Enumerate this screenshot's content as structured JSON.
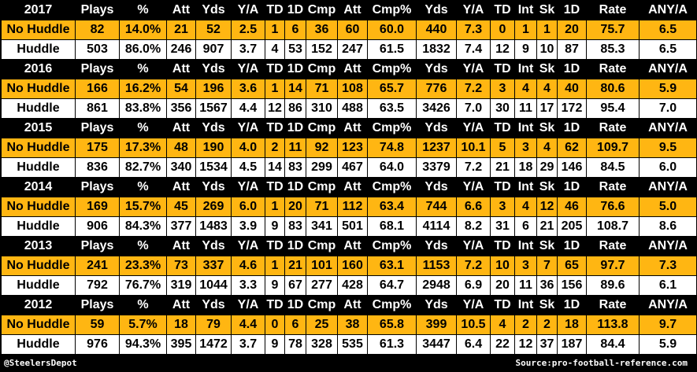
{
  "header_labels": [
    "Plays",
    "%",
    "Att",
    "Yds",
    "Y/A",
    "TD",
    "1D",
    "Cmp",
    "Att",
    "Cmp%",
    "Yds",
    "Y/A",
    "TD",
    "Int",
    "Sk",
    "1D",
    "Rate",
    "ANY/A"
  ],
  "seasons": [
    {
      "year": "2017",
      "rows": [
        {
          "label": "No Huddle",
          "values": [
            "82",
            "14.0%",
            "21",
            "52",
            "2.5",
            "1",
            "6",
            "36",
            "60",
            "60.0",
            "440",
            "7.3",
            "0",
            "1",
            "1",
            "20",
            "75.7",
            "6.5"
          ]
        },
        {
          "label": "Huddle",
          "values": [
            "503",
            "86.0%",
            "246",
            "907",
            "3.7",
            "4",
            "53",
            "152",
            "247",
            "61.5",
            "1832",
            "7.4",
            "12",
            "9",
            "10",
            "87",
            "85.3",
            "6.5"
          ]
        }
      ]
    },
    {
      "year": "2016",
      "rows": [
        {
          "label": "No Huddle",
          "values": [
            "166",
            "16.2%",
            "54",
            "196",
            "3.6",
            "1",
            "14",
            "71",
            "108",
            "65.7",
            "776",
            "7.2",
            "3",
            "4",
            "4",
            "40",
            "80.6",
            "5.9"
          ]
        },
        {
          "label": "Huddle",
          "values": [
            "861",
            "83.8%",
            "356",
            "1567",
            "4.4",
            "12",
            "86",
            "310",
            "488",
            "63.5",
            "3426",
            "7.0",
            "30",
            "11",
            "17",
            "172",
            "95.4",
            "7.0"
          ]
        }
      ]
    },
    {
      "year": "2015",
      "rows": [
        {
          "label": "No Huddle",
          "values": [
            "175",
            "17.3%",
            "48",
            "190",
            "4.0",
            "2",
            "11",
            "92",
            "123",
            "74.8",
            "1237",
            "10.1",
            "5",
            "3",
            "4",
            "62",
            "109.7",
            "9.5"
          ]
        },
        {
          "label": "Huddle",
          "values": [
            "836",
            "82.7%",
            "340",
            "1534",
            "4.5",
            "14",
            "83",
            "299",
            "467",
            "64.0",
            "3379",
            "7.2",
            "21",
            "18",
            "29",
            "146",
            "84.5",
            "6.0"
          ]
        }
      ]
    },
    {
      "year": "2014",
      "rows": [
        {
          "label": "No Huddle",
          "values": [
            "169",
            "15.7%",
            "45",
            "269",
            "6.0",
            "1",
            "20",
            "71",
            "112",
            "63.4",
            "744",
            "6.6",
            "3",
            "4",
            "12",
            "46",
            "76.6",
            "5.0"
          ]
        },
        {
          "label": "Huddle",
          "values": [
            "906",
            "84.3%",
            "377",
            "1483",
            "3.9",
            "9",
            "83",
            "341",
            "501",
            "68.1",
            "4114",
            "8.2",
            "31",
            "6",
            "21",
            "205",
            "108.7",
            "8.6"
          ]
        }
      ]
    },
    {
      "year": "2013",
      "rows": [
        {
          "label": "No Huddle",
          "values": [
            "241",
            "23.3%",
            "73",
            "337",
            "4.6",
            "1",
            "21",
            "101",
            "160",
            "63.1",
            "1153",
            "7.2",
            "10",
            "3",
            "7",
            "65",
            "97.7",
            "7.3"
          ]
        },
        {
          "label": "Huddle",
          "values": [
            "792",
            "76.7%",
            "319",
            "1044",
            "3.3",
            "9",
            "67",
            "277",
            "428",
            "64.7",
            "2948",
            "6.9",
            "20",
            "11",
            "36",
            "156",
            "89.6",
            "6.1"
          ]
        }
      ]
    },
    {
      "year": "2012",
      "rows": [
        {
          "label": "No Huddle",
          "values": [
            "59",
            "5.7%",
            "18",
            "79",
            "4.4",
            "0",
            "6",
            "25",
            "38",
            "65.8",
            "399",
            "10.5",
            "4",
            "2",
            "2",
            "18",
            "113.8",
            "9.7"
          ]
        },
        {
          "label": "Huddle",
          "values": [
            "976",
            "94.3%",
            "395",
            "1472",
            "3.7",
            "9",
            "78",
            "328",
            "535",
            "61.3",
            "3447",
            "6.4",
            "22",
            "12",
            "37",
            "187",
            "84.4",
            "5.9"
          ]
        }
      ]
    }
  ],
  "footer": {
    "credit": "@SteelersDepot",
    "source": "Source:pro-football-reference.com"
  },
  "colors": {
    "gold": "#ffb612",
    "black": "#000000",
    "white": "#ffffff"
  }
}
